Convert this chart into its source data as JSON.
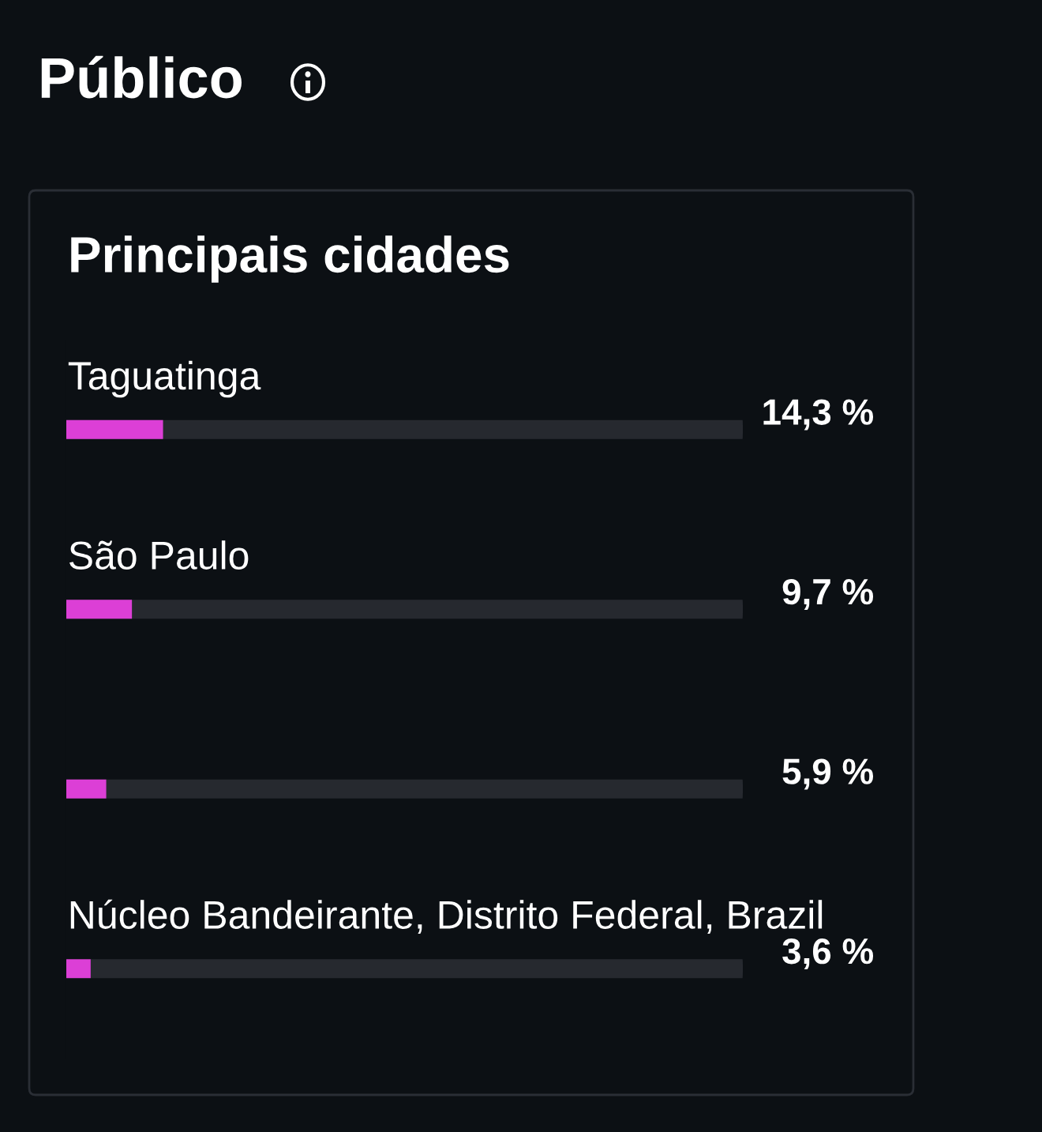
{
  "chart_data": {
    "type": "bar",
    "orientation": "horizontal",
    "title": "Público",
    "subtitle": "Principais cidades",
    "categories": [
      "Taguatinga",
      "São Paulo",
      null,
      "Núcleo Bandeirante, Distrito Federal, Brazil"
    ],
    "values": [
      14.3,
      9.7,
      5.9,
      3.6
    ],
    "value_labels": [
      "14,3 %",
      "9,7 %",
      "5,9 %",
      "3,6 %"
    ],
    "color": "#dc3fd6",
    "xlim": [
      0,
      100
    ]
  }
}
